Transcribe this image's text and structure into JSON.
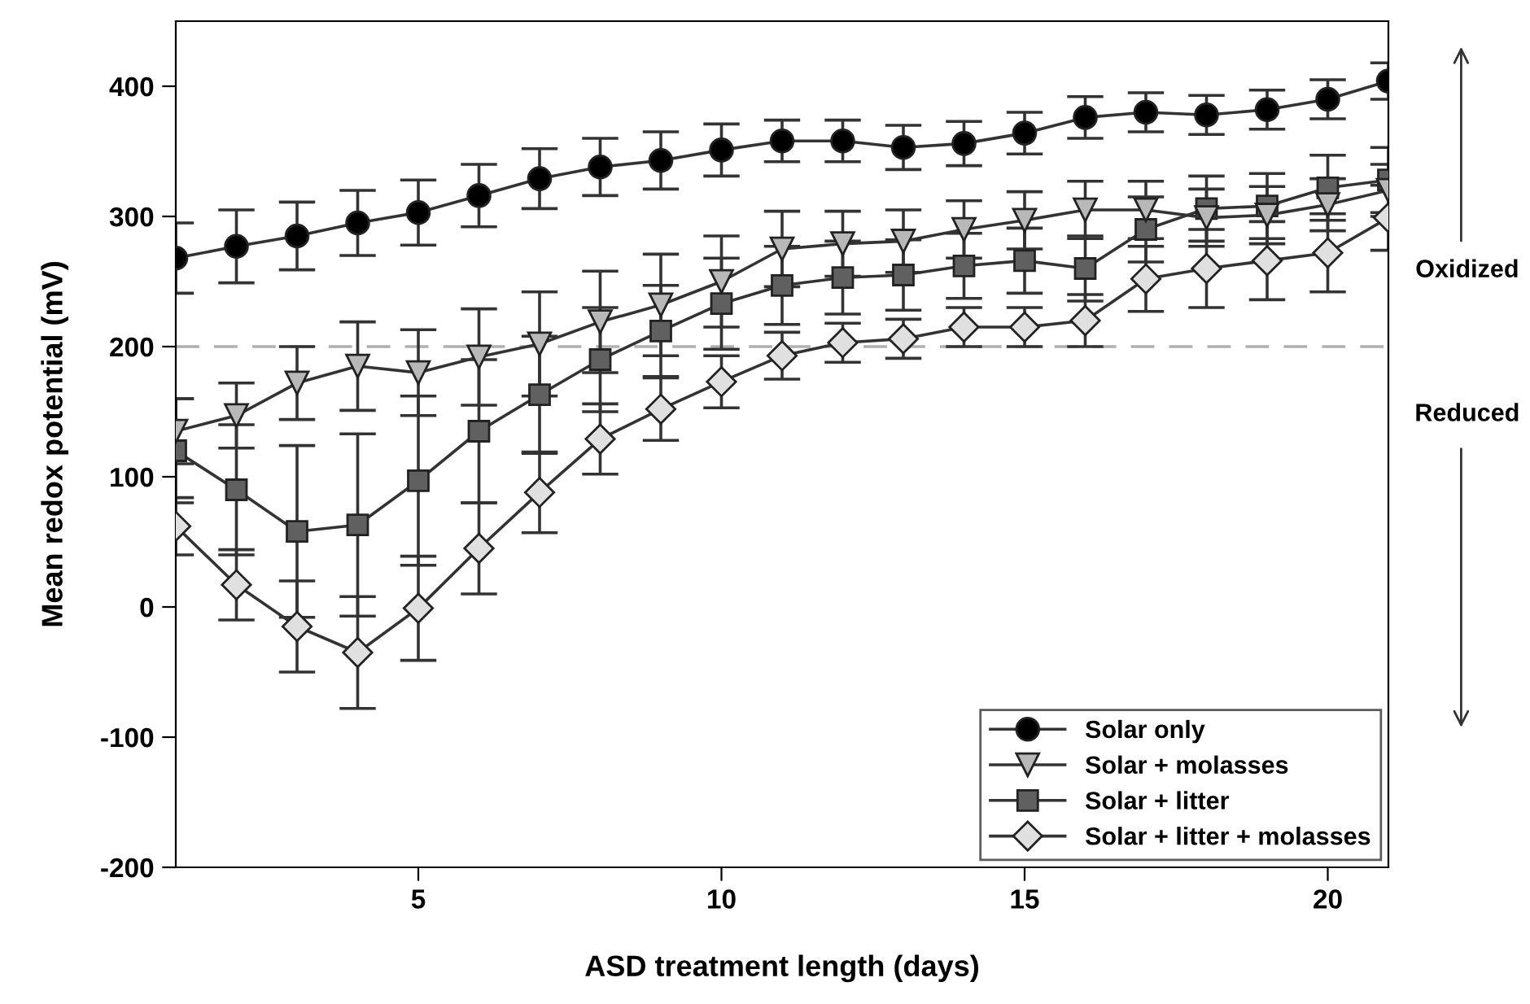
{
  "chart_data": {
    "type": "line",
    "xlabel": "ASD treatment length (days)",
    "ylabel": "Mean redox potential (mV)",
    "x": [
      1,
      2,
      3,
      4,
      5,
      6,
      7,
      8,
      9,
      10,
      11,
      12,
      13,
      14,
      15,
      16,
      17,
      18,
      19,
      20,
      21
    ],
    "xlim": [
      1,
      21
    ],
    "xticks": [
      5,
      10,
      15,
      20
    ],
    "ylim": [
      -200,
      450
    ],
    "yticks": [
      -200,
      -100,
      0,
      100,
      200,
      300,
      400
    ],
    "grid": false,
    "legend": "bottom right",
    "line_style": "solid",
    "series": [
      {
        "name": "Solar only",
        "color": "#000000",
        "marker": "circle",
        "values": [
          268,
          277,
          285,
          295,
          303,
          316,
          329,
          338,
          343,
          351,
          358,
          358,
          353,
          356,
          364,
          376,
          380,
          378,
          382,
          390,
          404
        ],
        "errors": [
          27,
          28,
          26,
          25,
          25,
          24,
          23,
          22,
          22,
          20,
          16,
          16,
          17,
          17,
          16,
          16,
          15,
          15,
          15,
          15,
          14
        ]
      },
      {
        "name": "Solar + molasses",
        "color": "#b8b8b8",
        "marker": "triangle",
        "values": [
          135,
          147,
          172,
          185,
          180,
          192,
          202,
          219,
          232,
          250,
          275,
          279,
          281,
          290,
          297,
          305,
          305,
          299,
          301,
          309,
          320
        ],
        "errors": [
          25,
          25,
          28,
          34,
          33,
          37,
          40,
          39,
          39,
          35,
          29,
          25,
          24,
          22,
          22,
          22,
          22,
          22,
          22,
          20,
          20
        ]
      },
      {
        "name": "Solar + litter",
        "color": "#606060",
        "marker": "square",
        "values": [
          120,
          90,
          58,
          63,
          97,
          135,
          163,
          190,
          212,
          233,
          247,
          253,
          255,
          262,
          266,
          260,
          290,
          306,
          308,
          322,
          328
        ],
        "errors": [
          40,
          50,
          66,
          70,
          65,
          55,
          45,
          40,
          35,
          35,
          30,
          28,
          27,
          25,
          25,
          25,
          25,
          25,
          25,
          25,
          25
        ]
      },
      {
        "name": "Solar + litter + molasses",
        "color": "#e0e0e0",
        "marker": "diamond",
        "values": [
          62,
          17,
          -15,
          -35,
          -1,
          45,
          88,
          129,
          152,
          173,
          193,
          203,
          206,
          215,
          215,
          220,
          252,
          260,
          266,
          272,
          299
        ],
        "errors": [
          22,
          27,
          35,
          43,
          40,
          35,
          31,
          27,
          24,
          20,
          18,
          15,
          15,
          15,
          15,
          20,
          25,
          30,
          30,
          30,
          25
        ]
      }
    ],
    "ref_lines": [
      {
        "axis": "y",
        "value": 200,
        "color": "#b0b0b0",
        "line_style": "dashed"
      }
    ],
    "annotations": [
      "Oxidized",
      "Reduced"
    ]
  }
}
